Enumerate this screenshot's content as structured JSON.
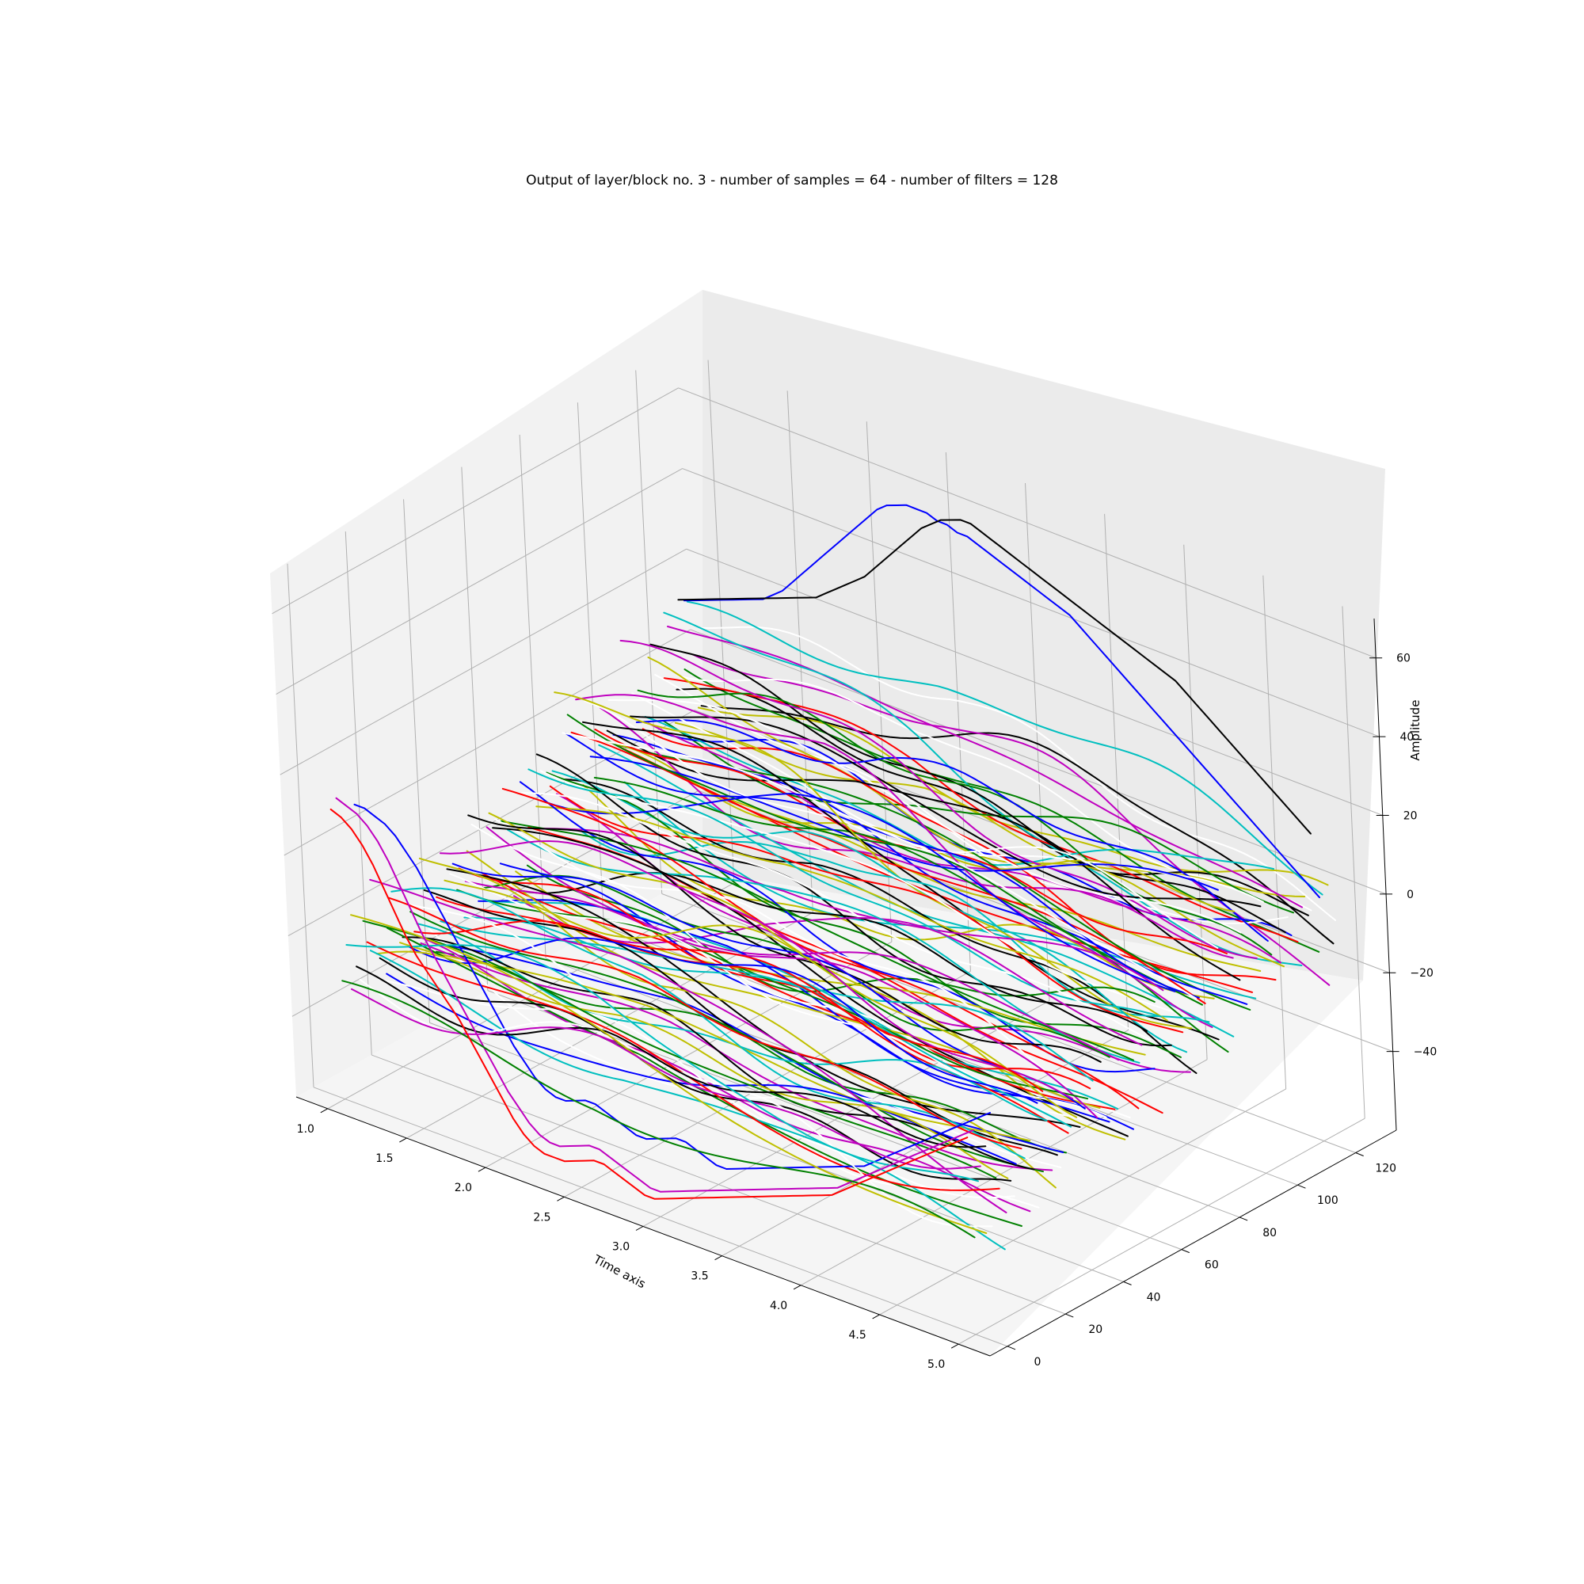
{
  "chart_data": {
    "type": "line",
    "projection": "3d",
    "title": "Output of layer/block no. 3 - number of samples = 64 - number of filters = 128",
    "xlabel": "Time axis",
    "ylabel": "",
    "zlabel": "Amplitude",
    "xlim": [
      0.8,
      5.2
    ],
    "ylim": [
      -6,
      134
    ],
    "zlim": [
      -60,
      70
    ],
    "x_ticks": [
      "1.0",
      "1.5",
      "2.0",
      "2.5",
      "3.0",
      "3.5",
      "4.0",
      "4.5",
      "5.0"
    ],
    "y_ticks": [
      "0",
      "20",
      "40",
      "60",
      "80",
      "100",
      "120"
    ],
    "z_ticks": [
      "−40",
      "−20",
      "0",
      "20",
      "40",
      "60"
    ],
    "grid": true,
    "legend": "none",
    "color_cycle": [
      "#0000ff",
      "#008000",
      "#ff0000",
      "#00bfbf",
      "#bf00bf",
      "#bfbf00",
      "#000000",
      "#ffffff"
    ],
    "series_count": 128,
    "samples_per_series": 64,
    "series_note": "one line per filter (filter index on the depth axis), amplitude vs. time",
    "x": [
      1.0,
      1.0635,
      1.127,
      1.1905,
      1.254,
      1.3175,
      1.381,
      1.4444,
      1.5079,
      1.5714,
      1.6349,
      1.6984,
      1.7619,
      1.8254,
      1.8889,
      1.9524,
      2.0159,
      2.0794,
      2.1429,
      2.2063,
      2.2698,
      2.3333,
      2.3968,
      2.4603,
      2.5238,
      2.5873,
      2.6508,
      2.7143,
      2.7778,
      2.8413,
      2.9048,
      2.9683,
      3.0317,
      3.0952,
      3.1587,
      3.2222,
      3.2857,
      3.3492,
      3.4127,
      3.4762,
      3.5397,
      3.6032,
      3.6667,
      3.7302,
      3.7937,
      3.8571,
      3.9206,
      3.9841,
      4.0476,
      4.1111,
      4.1746,
      4.2381,
      4.3016,
      4.3651,
      4.4286,
      4.4921,
      4.5556,
      4.619,
      4.6825,
      4.746,
      4.8095,
      4.873,
      4.9365,
      5.0
    ],
    "series_examples": [
      {
        "filter": 0,
        "color": "#ff0000",
        "values": [
          12,
          11,
          9,
          6,
          2,
          -3,
          -8,
          -13,
          -17,
          -20,
          -23,
          -26,
          -29,
          -33,
          -37,
          -41,
          -45,
          -49,
          -52,
          -54,
          -55,
          -55,
          -55,
          -54,
          -53,
          -52,
          -52,
          -53,
          -54,
          -55,
          -56,
          -56,
          -55,
          -54,
          -53,
          -52,
          -51,
          -50,
          -49,
          -48,
          -47,
          -46,
          -45,
          -44,
          -43,
          -42,
          -41,
          -40,
          -39,
          -38,
          -36,
          -34,
          -32,
          -30,
          -28,
          -26,
          -24,
          -22,
          -20,
          -18,
          -16,
          -14,
          -12,
          -10
        ]
      },
      {
        "filter": 2,
        "color": "#bf00bf",
        "values": [
          14,
          13,
          12,
          10,
          7,
          3,
          -2,
          -7,
          -12,
          -16,
          -20,
          -24,
          -28,
          -32,
          -36,
          -40,
          -44,
          -47,
          -50,
          -52,
          -53,
          -53,
          -52,
          -51,
          -50,
          -50,
          -51,
          -52,
          -53,
          -54,
          -55,
          -55,
          -54,
          -53,
          -52,
          -51,
          -50,
          -49,
          -48,
          -47,
          -46,
          -45,
          -44,
          -43,
          -42,
          -41,
          -40,
          -39,
          -38,
          -37,
          -35,
          -33,
          -31,
          -29,
          -27,
          -25,
          -23,
          -21,
          -19,
          -17,
          -15,
          -13,
          -11,
          -9
        ]
      },
      {
        "filter": 8,
        "color": "#0000ff",
        "values": [
          10,
          10,
          9,
          8,
          6,
          3,
          0,
          -4,
          -8,
          -12,
          -16,
          -20,
          -24,
          -28,
          -32,
          -36,
          -39,
          -42,
          -44,
          -45,
          -45,
          -44,
          -43,
          -43,
          -44,
          -45,
          -46,
          -47,
          -47,
          -46,
          -45,
          -44,
          -44,
          -45,
          -46,
          -47,
          -47,
          -46,
          -45,
          -44,
          -43,
          -42,
          -41,
          -40,
          -39,
          -38,
          -37,
          -36,
          -35,
          -34,
          -33,
          -31,
          -29,
          -27,
          -25,
          -23,
          -21,
          -19,
          -17,
          -15,
          -13,
          -11,
          -9,
          -7
        ]
      },
      {
        "filter": 120,
        "color": "#000000",
        "values": [
          16,
          17,
          18,
          19,
          20,
          21,
          22,
          23,
          24,
          25,
          26,
          27,
          28,
          29,
          30,
          32,
          34,
          36,
          38,
          40,
          43,
          46,
          49,
          52,
          55,
          58,
          60,
          62,
          63,
          64,
          64,
          63,
          62,
          61,
          60,
          59,
          58,
          57,
          56,
          55,
          54,
          53,
          52,
          51,
          50,
          49,
          48,
          47,
          46,
          45,
          44,
          42,
          40,
          38,
          36,
          34,
          32,
          30,
          28,
          26,
          24,
          22,
          20,
          18
        ]
      },
      {
        "filter": 122,
        "color": "#0000ff",
        "values": [
          15,
          16,
          17,
          18,
          19,
          20,
          21,
          22,
          23,
          25,
          27,
          30,
          33,
          36,
          39,
          42,
          45,
          48,
          51,
          54,
          57,
          59,
          60,
          61,
          61,
          61,
          60,
          60,
          59,
          59,
          58,
          57,
          56,
          55,
          54,
          53,
          52,
          51,
          50,
          49,
          47,
          45,
          43,
          41,
          39,
          37,
          35,
          33,
          31,
          29,
          27,
          25,
          23,
          21,
          19,
          17,
          15,
          13,
          11,
          9,
          7,
          5,
          3,
          1
        ]
      }
    ]
  }
}
